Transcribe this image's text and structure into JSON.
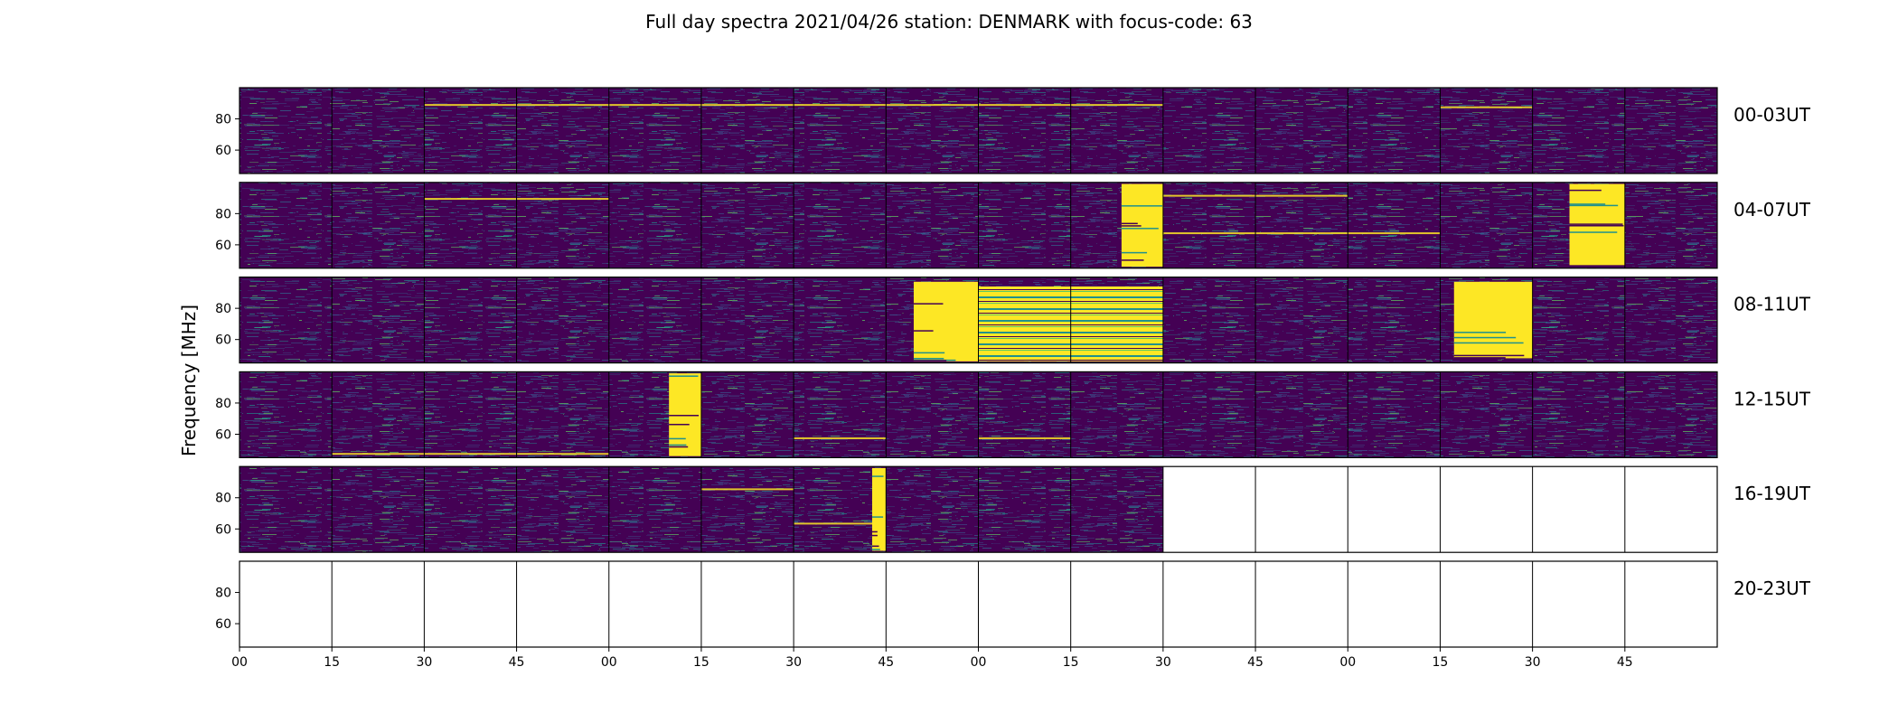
{
  "chart_data": {
    "type": "heatmap",
    "title": "Full day spectra 2021/04/26 station: DENMARK with focus-code: 63",
    "ylabel": "Frequency [MHz]",
    "ylim": [
      45,
      100
    ],
    "y_ticks": [
      "80",
      "60"
    ],
    "x_ticks": [
      "00",
      "15",
      "30",
      "45",
      "00",
      "15",
      "30",
      "45",
      "00",
      "15",
      "30",
      "45",
      "00",
      "15",
      "30",
      "45"
    ],
    "blocks_per_row": 16,
    "block_minutes": 15,
    "grid": false,
    "colormap": {
      "background": "#440154",
      "low": "#3b528b",
      "mid": "#21918c",
      "high": "#5ec962",
      "peak": "#fde725"
    },
    "rows": [
      {
        "label": "00-03UT",
        "data_blocks": 16,
        "bursts": [],
        "bright_lines": [
          {
            "blocks": [
              2,
              3
            ],
            "freq": 89.5
          },
          {
            "blocks": [
              4,
              5,
              6,
              7
            ],
            "freq": 89.5
          },
          {
            "blocks": [
              8,
              9
            ],
            "freq": 89.5
          },
          {
            "blocks": [
              13
            ],
            "freq": 88
          }
        ]
      },
      {
        "label": "04-07UT",
        "data_blocks": 16,
        "bursts": [
          {
            "start_block": 9.55,
            "end_block": 10.0,
            "f_low": 46,
            "f_high": 99
          },
          {
            "start_block": 14.4,
            "end_block": 15.0,
            "f_low": 47,
            "f_high": 99
          }
        ],
        "bright_lines": [
          {
            "blocks": [
              10,
              11
            ],
            "freq": 92
          },
          {
            "blocks": [
              10,
              11,
              12
            ],
            "freq": 68
          },
          {
            "blocks": [
              2,
              3
            ],
            "freq": 90
          }
        ]
      },
      {
        "label": "08-11UT",
        "data_blocks": 16,
        "bursts": [
          {
            "start_block": 7.3,
            "end_block": 8.0,
            "f_low": 46,
            "f_high": 97
          },
          {
            "start_block": 8.0,
            "end_block": 10.0,
            "f_low": 46,
            "f_high": 94,
            "striped": true
          },
          {
            "start_block": 13.15,
            "end_block": 14.0,
            "f_low": 48,
            "f_high": 97
          }
        ],
        "bright_lines": []
      },
      {
        "label": "12-15UT",
        "data_blocks": 16,
        "bursts": [
          {
            "start_block": 4.65,
            "end_block": 5.0,
            "f_low": 46,
            "f_high": 99
          }
        ],
        "bright_lines": [
          {
            "blocks": [
              1,
              2,
              3
            ],
            "freq": 48
          },
          {
            "blocks": [
              6
            ],
            "freq": 58
          },
          {
            "blocks": [
              8
            ],
            "freq": 58
          }
        ]
      },
      {
        "label": "16-19UT",
        "data_blocks": 10,
        "bursts": [
          {
            "start_block": 6.85,
            "end_block": 7.0,
            "f_low": 46,
            "f_high": 99
          }
        ],
        "bright_lines": [
          {
            "blocks": [
              5
            ],
            "freq": 86
          },
          {
            "blocks": [
              6
            ],
            "freq": 64
          }
        ]
      },
      {
        "label": "20-23UT",
        "data_blocks": 0,
        "bursts": [],
        "bright_lines": []
      }
    ]
  }
}
